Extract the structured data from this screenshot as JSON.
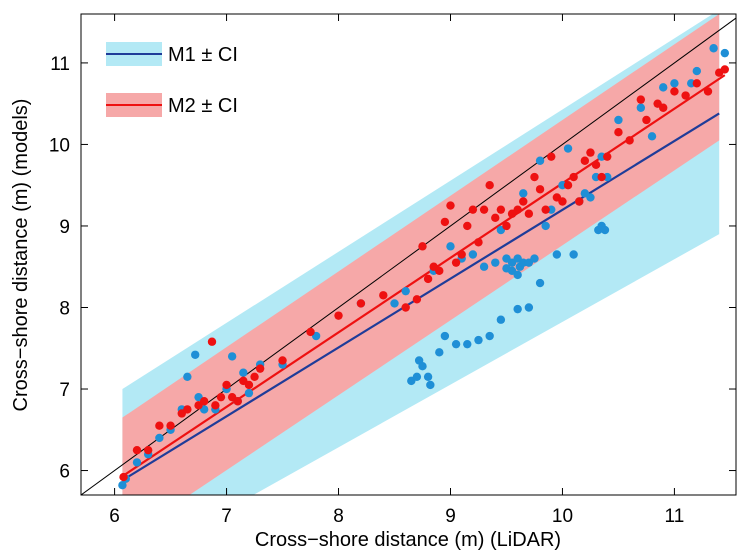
{
  "chart_data": {
    "type": "scatter",
    "xlabel": "Cross−shore distance (m) (LiDAR)",
    "ylabel": "Cross−shore distance (m) (models)",
    "xlim": [
      5.7,
      11.55
    ],
    "ylim": [
      5.7,
      11.6
    ],
    "xticks": [
      6,
      7,
      8,
      9,
      10,
      11
    ],
    "yticks": [
      6,
      7,
      8,
      9,
      10,
      11
    ],
    "grid": false,
    "legend_position": "top-left",
    "identity_line": {
      "x": [
        5.7,
        11.55
      ],
      "y": [
        5.7,
        11.55
      ],
      "color": "#000000"
    },
    "series": [
      {
        "name": "M1 ± CI",
        "color": "#1f8fd6",
        "line_color": "#1f3c99",
        "band_color": "#b3e9f5",
        "fit": {
          "x": [
            6.07,
            11.4
          ],
          "y": [
            5.88,
            10.38
          ]
        },
        "band": {
          "x": [
            6.07,
            11.4
          ],
          "lower": [
            4.8,
            8.9
          ],
          "upper": [
            7.0,
            11.65
          ]
        },
        "points": [
          [
            6.07,
            5.82
          ],
          [
            6.1,
            5.9
          ],
          [
            6.2,
            6.1
          ],
          [
            6.3,
            6.2
          ],
          [
            6.4,
            6.4
          ],
          [
            6.5,
            6.5
          ],
          [
            6.6,
            6.75
          ],
          [
            6.65,
            7.15
          ],
          [
            6.72,
            7.42
          ],
          [
            6.75,
            6.9
          ],
          [
            6.8,
            6.75
          ],
          [
            6.9,
            6.75
          ],
          [
            7.0,
            7.0
          ],
          [
            7.05,
            7.4
          ],
          [
            7.1,
            6.85
          ],
          [
            7.15,
            7.2
          ],
          [
            7.2,
            6.95
          ],
          [
            7.3,
            7.3
          ],
          [
            7.5,
            7.3
          ],
          [
            7.8,
            7.65
          ],
          [
            8.2,
            8.05
          ],
          [
            8.5,
            8.05
          ],
          [
            8.6,
            8.2
          ],
          [
            8.65,
            7.1
          ],
          [
            8.7,
            7.15
          ],
          [
            8.72,
            7.35
          ],
          [
            8.75,
            7.28
          ],
          [
            8.8,
            7.15
          ],
          [
            8.82,
            7.05
          ],
          [
            8.85,
            8.45
          ],
          [
            8.9,
            7.45
          ],
          [
            8.95,
            7.65
          ],
          [
            9.0,
            8.75
          ],
          [
            9.05,
            7.55
          ],
          [
            9.1,
            8.6
          ],
          [
            9.15,
            7.55
          ],
          [
            9.2,
            8.65
          ],
          [
            9.25,
            7.6
          ],
          [
            9.3,
            8.5
          ],
          [
            9.35,
            7.65
          ],
          [
            9.4,
            8.55
          ],
          [
            9.45,
            7.85
          ],
          [
            9.45,
            8.95
          ],
          [
            9.5,
            8.6
          ],
          [
            9.5,
            8.48
          ],
          [
            9.55,
            8.45
          ],
          [
            9.55,
            8.55
          ],
          [
            9.6,
            8.4
          ],
          [
            9.6,
            8.6
          ],
          [
            9.6,
            7.98
          ],
          [
            9.62,
            8.5
          ],
          [
            9.65,
            8.55
          ],
          [
            9.65,
            9.4
          ],
          [
            9.7,
            8.55
          ],
          [
            9.7,
            8.0
          ],
          [
            9.75,
            8.6
          ],
          [
            9.8,
            9.8
          ],
          [
            9.8,
            8.3
          ],
          [
            9.85,
            9.0
          ],
          [
            9.9,
            9.2
          ],
          [
            9.95,
            8.65
          ],
          [
            10.0,
            9.5
          ],
          [
            10.05,
            9.95
          ],
          [
            10.1,
            8.65
          ],
          [
            10.15,
            9.3
          ],
          [
            10.2,
            9.4
          ],
          [
            10.25,
            9.35
          ],
          [
            10.3,
            9.6
          ],
          [
            10.32,
            8.95
          ],
          [
            10.35,
            9.0
          ],
          [
            10.35,
            9.85
          ],
          [
            10.38,
            8.95
          ],
          [
            10.4,
            9.6
          ],
          [
            10.5,
            10.3
          ],
          [
            10.7,
            10.45
          ],
          [
            10.8,
            10.1
          ],
          [
            10.9,
            10.7
          ],
          [
            11.0,
            10.75
          ],
          [
            11.15,
            10.75
          ],
          [
            11.2,
            10.9
          ],
          [
            11.35,
            11.18
          ],
          [
            11.45,
            11.12
          ]
        ]
      },
      {
        "name": "M2 ± CI",
        "color": "#ee1111",
        "line_color": "#ee1111",
        "band_color": "#f6a8a8",
        "fit": {
          "x": [
            6.07,
            11.45
          ],
          "y": [
            5.93,
            10.85
          ]
        },
        "band": {
          "x": [
            6.07,
            11.4
          ],
          "lower": [
            5.15,
            10.05
          ],
          "upper": [
            6.65,
            11.6
          ]
        },
        "points": [
          [
            6.08,
            5.92
          ],
          [
            6.2,
            6.25
          ],
          [
            6.3,
            6.25
          ],
          [
            6.4,
            6.55
          ],
          [
            6.5,
            6.55
          ],
          [
            6.6,
            6.7
          ],
          [
            6.65,
            6.75
          ],
          [
            6.75,
            6.8
          ],
          [
            6.8,
            6.85
          ],
          [
            6.87,
            7.58
          ],
          [
            6.9,
            6.8
          ],
          [
            6.95,
            6.9
          ],
          [
            7.0,
            7.05
          ],
          [
            7.05,
            6.9
          ],
          [
            7.1,
            6.85
          ],
          [
            7.15,
            7.1
          ],
          [
            7.2,
            7.05
          ],
          [
            7.25,
            7.15
          ],
          [
            7.3,
            7.25
          ],
          [
            7.5,
            7.35
          ],
          [
            7.75,
            7.7
          ],
          [
            8.0,
            7.9
          ],
          [
            8.2,
            8.05
          ],
          [
            8.4,
            8.15
          ],
          [
            8.6,
            8.0
          ],
          [
            8.7,
            8.1
          ],
          [
            8.75,
            8.75
          ],
          [
            8.8,
            8.35
          ],
          [
            8.85,
            8.5
          ],
          [
            8.9,
            8.45
          ],
          [
            8.95,
            9.05
          ],
          [
            9.0,
            9.25
          ],
          [
            9.05,
            8.55
          ],
          [
            9.1,
            8.65
          ],
          [
            9.15,
            9.0
          ],
          [
            9.2,
            9.2
          ],
          [
            9.25,
            8.8
          ],
          [
            9.3,
            9.2
          ],
          [
            9.35,
            9.5
          ],
          [
            9.4,
            9.1
          ],
          [
            9.45,
            9.2
          ],
          [
            9.5,
            9.0
          ],
          [
            9.55,
            9.15
          ],
          [
            9.6,
            9.2
          ],
          [
            9.65,
            9.3
          ],
          [
            9.7,
            9.15
          ],
          [
            9.75,
            9.6
          ],
          [
            9.8,
            9.45
          ],
          [
            9.85,
            9.2
          ],
          [
            9.9,
            9.85
          ],
          [
            9.95,
            9.35
          ],
          [
            10.0,
            9.3
          ],
          [
            10.05,
            9.5
          ],
          [
            10.1,
            9.6
          ],
          [
            10.15,
            9.3
          ],
          [
            10.2,
            9.8
          ],
          [
            10.25,
            9.9
          ],
          [
            10.3,
            9.75
          ],
          [
            10.35,
            9.6
          ],
          [
            10.4,
            9.85
          ],
          [
            10.5,
            10.15
          ],
          [
            10.6,
            10.05
          ],
          [
            10.7,
            10.55
          ],
          [
            10.75,
            10.3
          ],
          [
            10.85,
            10.5
          ],
          [
            10.9,
            10.45
          ],
          [
            11.0,
            10.65
          ],
          [
            11.1,
            10.6
          ],
          [
            11.2,
            10.75
          ],
          [
            11.3,
            10.65
          ],
          [
            11.4,
            10.88
          ],
          [
            11.45,
            10.92
          ]
        ]
      }
    ]
  }
}
